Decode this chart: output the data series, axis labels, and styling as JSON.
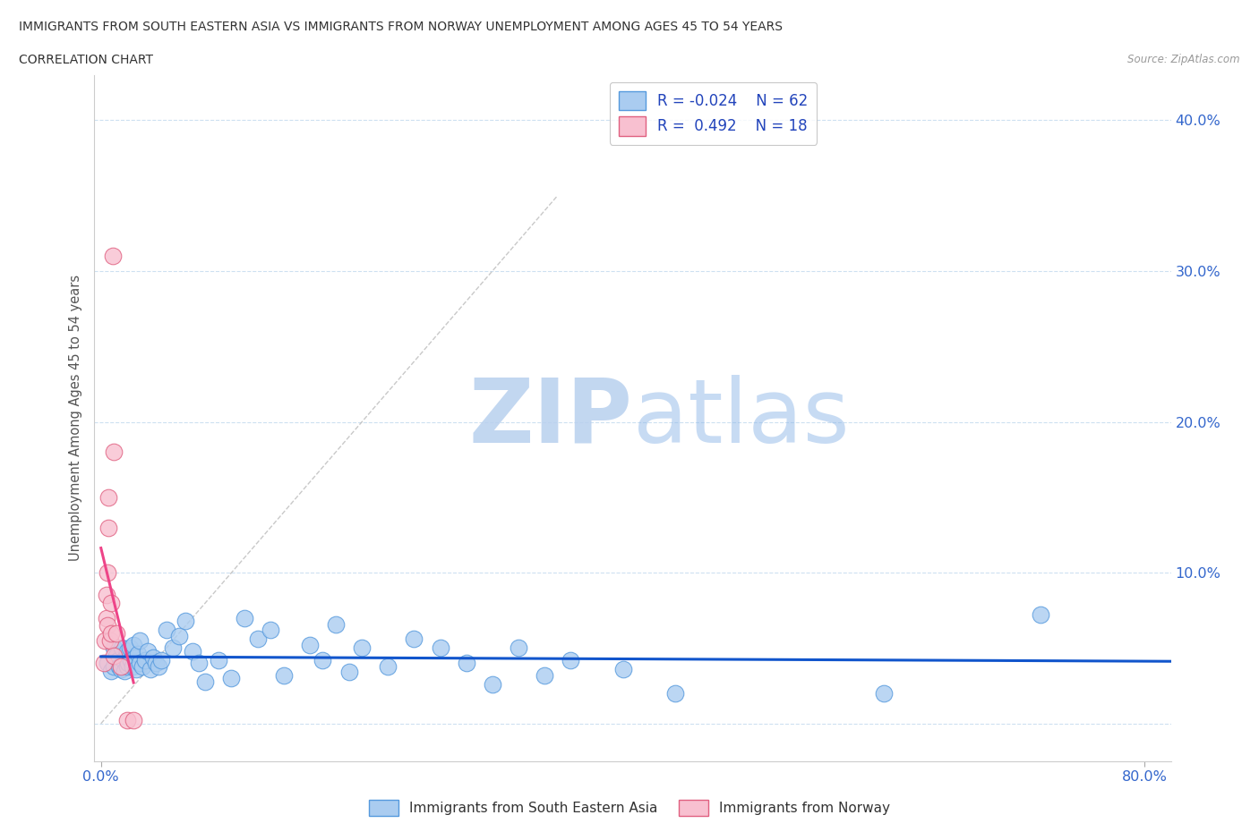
{
  "title_line1": "IMMIGRANTS FROM SOUTH EASTERN ASIA VS IMMIGRANTS FROM NORWAY UNEMPLOYMENT AMONG AGES 45 TO 54 YEARS",
  "title_line2": "CORRELATION CHART",
  "source_text": "Source: ZipAtlas.com",
  "ylabel": "Unemployment Among Ages 45 to 54 years",
  "xlim": [
    -0.005,
    0.82
  ],
  "ylim": [
    -0.025,
    0.43
  ],
  "series1_color": "#aaccf0",
  "series1_edge": "#5599dd",
  "series2_color": "#f8c0d0",
  "series2_edge": "#e06080",
  "trend1_color": "#1155cc",
  "trend2_color": "#ee4488",
  "R1": -0.024,
  "N1": 62,
  "R2": 0.492,
  "N2": 18,
  "legend_label1": "Immigrants from South Eastern Asia",
  "legend_label2": "Immigrants from Norway",
  "blue_scatter_x": [
    0.005,
    0.008,
    0.01,
    0.01,
    0.012,
    0.013,
    0.014,
    0.015,
    0.016,
    0.017,
    0.018,
    0.019,
    0.02,
    0.02,
    0.021,
    0.022,
    0.023,
    0.024,
    0.025,
    0.026,
    0.027,
    0.028,
    0.03,
    0.03,
    0.032,
    0.034,
    0.036,
    0.038,
    0.04,
    0.042,
    0.044,
    0.046,
    0.05,
    0.055,
    0.06,
    0.065,
    0.07,
    0.075,
    0.08,
    0.09,
    0.1,
    0.11,
    0.12,
    0.13,
    0.14,
    0.16,
    0.17,
    0.18,
    0.19,
    0.2,
    0.22,
    0.24,
    0.26,
    0.28,
    0.3,
    0.32,
    0.34,
    0.36,
    0.4,
    0.44,
    0.6,
    0.72
  ],
  "blue_scatter_y": [
    0.04,
    0.035,
    0.038,
    0.05,
    0.045,
    0.042,
    0.038,
    0.036,
    0.05,
    0.042,
    0.035,
    0.044,
    0.048,
    0.038,
    0.04,
    0.05,
    0.042,
    0.038,
    0.052,
    0.044,
    0.036,
    0.046,
    0.04,
    0.055,
    0.038,
    0.042,
    0.048,
    0.036,
    0.044,
    0.04,
    0.038,
    0.042,
    0.062,
    0.05,
    0.058,
    0.068,
    0.048,
    0.04,
    0.028,
    0.042,
    0.03,
    0.07,
    0.056,
    0.062,
    0.032,
    0.052,
    0.042,
    0.066,
    0.034,
    0.05,
    0.038,
    0.056,
    0.05,
    0.04,
    0.026,
    0.05,
    0.032,
    0.042,
    0.036,
    0.02,
    0.02,
    0.072
  ],
  "pink_scatter_x": [
    0.002,
    0.003,
    0.004,
    0.004,
    0.005,
    0.005,
    0.006,
    0.006,
    0.007,
    0.008,
    0.008,
    0.009,
    0.01,
    0.01,
    0.012,
    0.015,
    0.02,
    0.025
  ],
  "pink_scatter_y": [
    0.04,
    0.055,
    0.07,
    0.085,
    0.065,
    0.1,
    0.13,
    0.15,
    0.055,
    0.06,
    0.08,
    0.31,
    0.045,
    0.18,
    0.06,
    0.038,
    0.002,
    0.002
  ],
  "ref_line_x1": 0.0,
  "ref_line_y1": 0.0,
  "ref_line_x2": 0.35,
  "ref_line_y2": 0.35,
  "ytick_positions": [
    0.0,
    0.1,
    0.2,
    0.3,
    0.4
  ],
  "ytick_labels": [
    "",
    "10.0%",
    "20.0%",
    "30.0%",
    "40.0%"
  ],
  "xtick_positions": [
    0.0,
    0.8
  ],
  "xtick_labels": [
    "0.0%",
    "80.0%"
  ],
  "grid_color": "#c8ddf0",
  "watermark_zip_color": "#b8d0ee",
  "watermark_atlas_color": "#90b8e8"
}
